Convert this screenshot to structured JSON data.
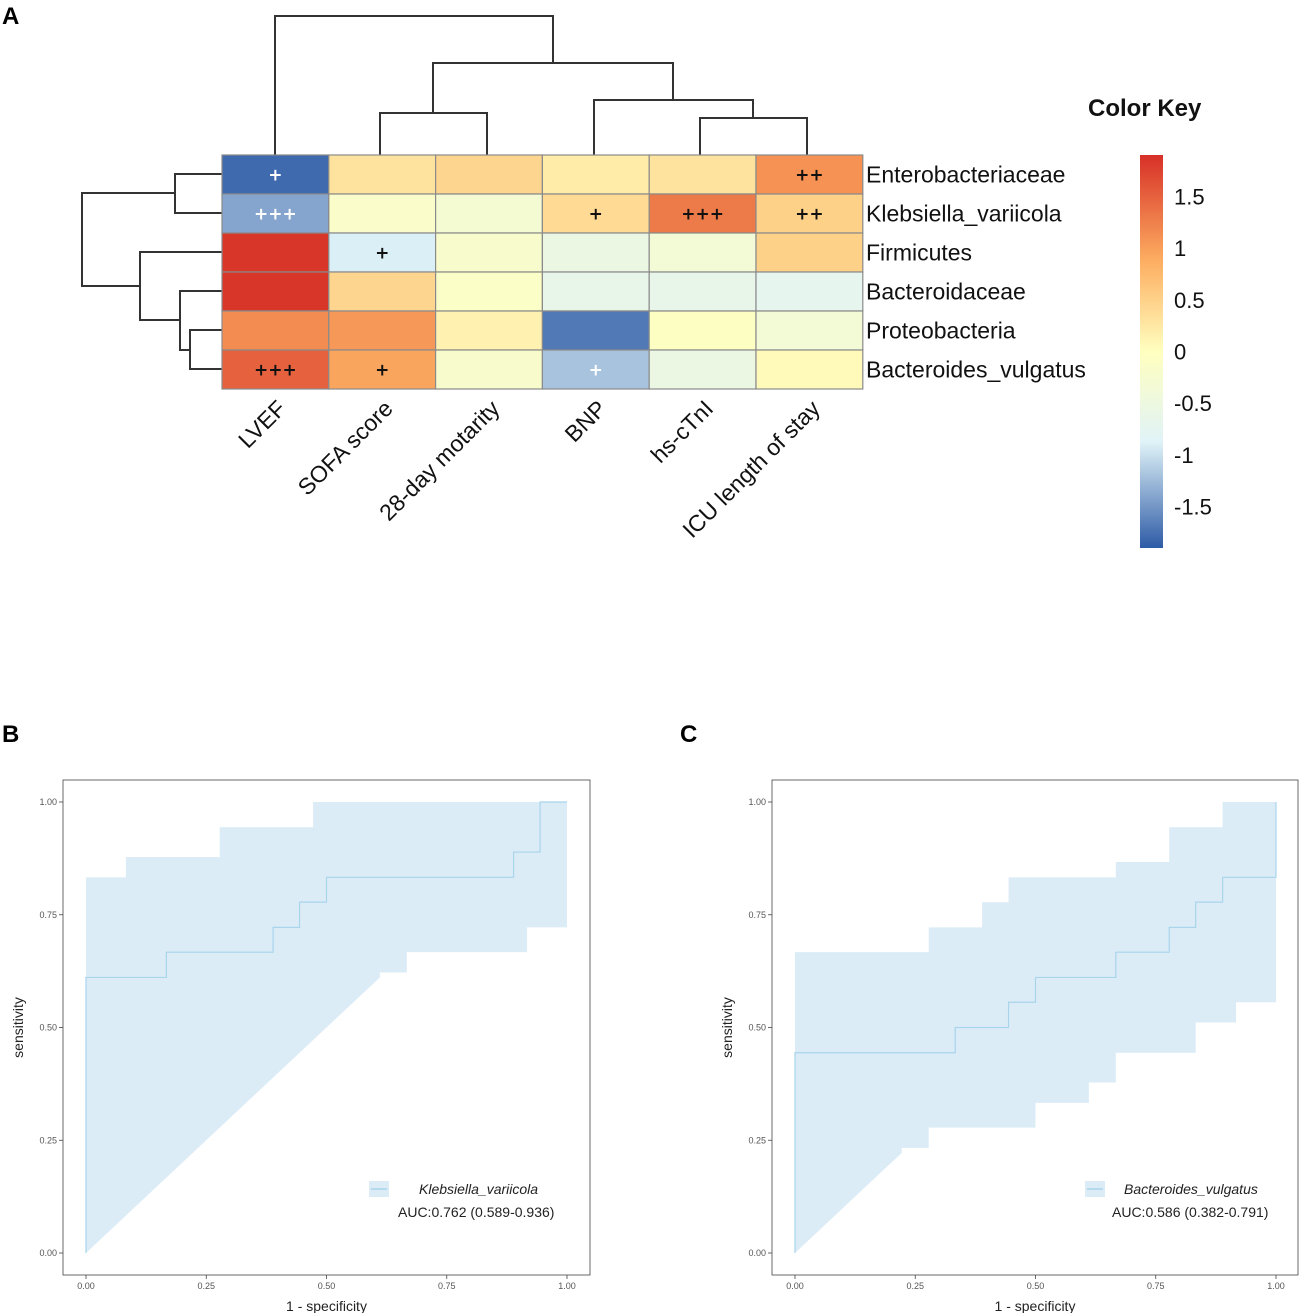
{
  "panels": {
    "a": "A",
    "b": "B",
    "c": "C"
  },
  "chart_data": [
    {
      "type": "heatmap",
      "panel": "A",
      "columns": [
        "LVEF",
        "SOFA score",
        "28-day motarity",
        "BNP",
        "hs-cTnI",
        "ICU length of stay"
      ],
      "rows": [
        "Enterobacteriaceae",
        "Klebsiella_variicola",
        "Firmicutes",
        "Bacteroidaceae",
        "Proteobacteria",
        "Bacteroides_vulgatus"
      ],
      "values": [
        [
          -1.8,
          0.3,
          0.45,
          0.2,
          0.3,
          1.1
        ],
        [
          -1.4,
          -0.15,
          -0.3,
          0.4,
          1.3,
          0.5
        ],
        [
          1.85,
          -0.9,
          -0.2,
          -0.55,
          -0.35,
          0.5
        ],
        [
          1.85,
          0.45,
          -0.1,
          -0.65,
          -0.65,
          -0.7
        ],
        [
          1.15,
          1.05,
          0.15,
          -1.7,
          -0.05,
          -0.35
        ],
        [
          1.5,
          0.95,
          -0.2,
          -1.2,
          -0.55,
          0.05
        ]
      ],
      "significance": [
        [
          "+",
          "",
          "",
          "",
          "",
          "++"
        ],
        [
          "+++",
          "",
          "",
          "+",
          "+++",
          "++"
        ],
        [
          "",
          "+",
          "",
          "",
          "",
          ""
        ],
        [
          "",
          "",
          "",
          "",
          "",
          ""
        ],
        [
          "",
          "",
          "",
          "",
          "",
          ""
        ],
        [
          "+++",
          "+",
          "",
          "+",
          "",
          ""
        ]
      ],
      "significance_white": [
        [
          true,
          false,
          false,
          false,
          false,
          false
        ],
        [
          true,
          false,
          false,
          false,
          false,
          false
        ],
        [
          false,
          false,
          false,
          false,
          false,
          false
        ],
        [
          false,
          false,
          false,
          false,
          false,
          false
        ],
        [
          false,
          false,
          false,
          false,
          false,
          false
        ],
        [
          false,
          false,
          false,
          true,
          false,
          false
        ]
      ],
      "color_key": {
        "title": "Color Key",
        "range": [
          -1.9,
          1.9
        ],
        "ticks": [
          "1.5",
          "1",
          "0.5",
          "0",
          "-0.5",
          "-1",
          "-1.5"
        ],
        "colors": [
          "#2e5ba6",
          "#e0f3f8",
          "#ffffbf",
          "#fdae61",
          "#d73027"
        ]
      }
    },
    {
      "type": "line",
      "panel": "B",
      "series_name": "Klebsiella_variicola",
      "auc_label": "AUC:0.762 (0.589-0.936)",
      "xlabel": "1 - specificity",
      "ylabel": "sensitivity",
      "xlim": [
        0,
        1
      ],
      "ylim": [
        0,
        1
      ],
      "xticks": [
        "0.00",
        "0.25",
        "0.50",
        "0.75",
        "1.00"
      ],
      "yticks": [
        "0.00",
        "0.25",
        "0.50",
        "0.75",
        "1.00"
      ],
      "roc": [
        [
          0,
          0
        ],
        [
          0,
          0.611
        ],
        [
          0.167,
          0.611
        ],
        [
          0.167,
          0.667
        ],
        [
          0.389,
          0.667
        ],
        [
          0.389,
          0.722
        ],
        [
          0.444,
          0.722
        ],
        [
          0.444,
          0.778
        ],
        [
          0.5,
          0.778
        ],
        [
          0.5,
          0.833
        ],
        [
          0.889,
          0.833
        ],
        [
          0.889,
          0.889
        ],
        [
          0.944,
          0.889
        ],
        [
          0.944,
          1.0
        ],
        [
          1.0,
          1.0
        ]
      ],
      "ci_upper": [
        [
          0,
          0.833
        ],
        [
          0.083,
          0.833
        ],
        [
          0.083,
          0.878
        ],
        [
          0.278,
          0.878
        ],
        [
          0.278,
          0.944
        ],
        [
          0.472,
          0.944
        ],
        [
          0.472,
          1.0
        ],
        [
          1.0,
          1.0
        ]
      ],
      "ci_lower": [
        [
          0,
          0
        ],
        [
          0.611,
          0.611
        ],
        [
          0.611,
          0.622
        ],
        [
          0.667,
          0.622
        ],
        [
          0.667,
          0.667
        ],
        [
          0.917,
          0.667
        ],
        [
          0.917,
          0.722
        ],
        [
          1.0,
          0.722
        ],
        [
          1.0,
          1.0
        ]
      ],
      "color": "#a8d4ec",
      "fill": "#dcecf7"
    },
    {
      "type": "line",
      "panel": "C",
      "series_name": "Bacteroides_vulgatus",
      "auc_label": "AUC:0.586 (0.382-0.791)",
      "xlabel": "1 - specificity",
      "ylabel": "sensitivity",
      "xlim": [
        0,
        1
      ],
      "ylim": [
        0,
        1
      ],
      "xticks": [
        "0.00",
        "0.25",
        "0.50",
        "0.75",
        "1.00"
      ],
      "yticks": [
        "0.00",
        "0.25",
        "0.50",
        "0.75",
        "1.00"
      ],
      "roc": [
        [
          0,
          0
        ],
        [
          0,
          0.444
        ],
        [
          0.333,
          0.444
        ],
        [
          0.333,
          0.5
        ],
        [
          0.444,
          0.5
        ],
        [
          0.444,
          0.556
        ],
        [
          0.5,
          0.556
        ],
        [
          0.5,
          0.611
        ],
        [
          0.667,
          0.611
        ],
        [
          0.667,
          0.667
        ],
        [
          0.778,
          0.667
        ],
        [
          0.778,
          0.722
        ],
        [
          0.833,
          0.722
        ],
        [
          0.833,
          0.778
        ],
        [
          0.889,
          0.778
        ],
        [
          0.889,
          0.833
        ],
        [
          1.0,
          0.833
        ],
        [
          1.0,
          1.0
        ]
      ],
      "ci_upper": [
        [
          0,
          0.667
        ],
        [
          0.278,
          0.667
        ],
        [
          0.278,
          0.722
        ],
        [
          0.389,
          0.722
        ],
        [
          0.389,
          0.778
        ],
        [
          0.444,
          0.778
        ],
        [
          0.444,
          0.833
        ],
        [
          0.667,
          0.833
        ],
        [
          0.667,
          0.867
        ],
        [
          0.778,
          0.867
        ],
        [
          0.778,
          0.944
        ],
        [
          0.889,
          0.944
        ],
        [
          0.889,
          1.0
        ],
        [
          1.0,
          1.0
        ]
      ],
      "ci_lower": [
        [
          0,
          0
        ],
        [
          0.222,
          0.222
        ],
        [
          0.222,
          0.233
        ],
        [
          0.278,
          0.233
        ],
        [
          0.278,
          0.278
        ],
        [
          0.5,
          0.278
        ],
        [
          0.5,
          0.333
        ],
        [
          0.611,
          0.333
        ],
        [
          0.611,
          0.378
        ],
        [
          0.667,
          0.378
        ],
        [
          0.667,
          0.444
        ],
        [
          0.833,
          0.444
        ],
        [
          0.833,
          0.511
        ],
        [
          0.917,
          0.511
        ],
        [
          0.917,
          0.556
        ],
        [
          1.0,
          0.556
        ],
        [
          1.0,
          0.611
        ]
      ],
      "color": "#a8d4ec",
      "fill": "#dcecf7"
    }
  ]
}
